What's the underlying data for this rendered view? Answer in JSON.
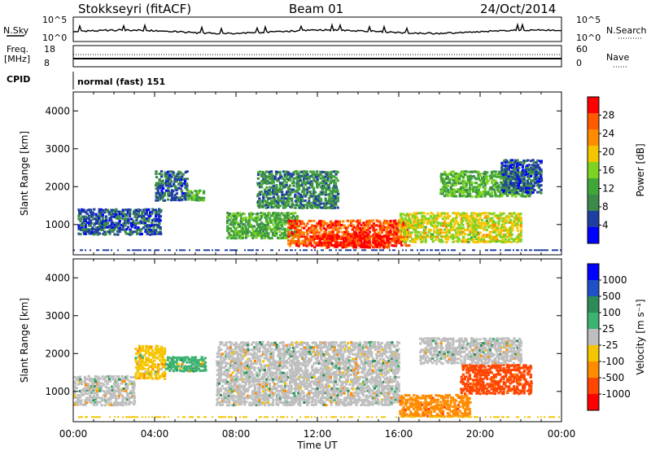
{
  "header": {
    "station": "Stokkseyri (fitACF)",
    "beam": "Beam 01",
    "date": "24/Oct/2014"
  },
  "top_panel": {
    "left_label": "N.Sky",
    "left_ticks": [
      "10^5",
      "10^0"
    ],
    "right_label": "N.Search",
    "right_ticks": [
      "10^5",
      "10^0"
    ]
  },
  "freq_panel": {
    "left_label_line1": "Freq.",
    "left_label_line2": "[MHz]",
    "left_ticks": [
      "18",
      "8"
    ],
    "right_label": "Nave",
    "right_ticks": [
      "60",
      "0"
    ],
    "cpid_label": "CPID",
    "cpid_value": "normal (fast) 151"
  },
  "colors": {
    "power": [
      "#0000ff",
      "#1f3fa0",
      "#3c8a4a",
      "#3fa637",
      "#7ed321",
      "#f5c500",
      "#ff8c00",
      "#ff5a00",
      "#ff0000"
    ],
    "velocity": [
      "#0000ff",
      "#1e50c8",
      "#2e8b57",
      "#3cb371",
      "#bebebe",
      "#f5c500",
      "#ff8c00",
      "#ff4500",
      "#ff0000"
    ]
  },
  "chart_data": [
    {
      "type": "heatmap",
      "name": "power",
      "ylabel": "Slant Range [km]",
      "ylim": [
        200,
        4500
      ],
      "yticks": [
        "1000",
        "2000",
        "3000",
        "4000"
      ],
      "colorbar_label": "Power [dB]",
      "colorbar_ticks": [
        "4",
        "8",
        "12",
        "16",
        "20",
        "24",
        "28"
      ],
      "colorbar_range": [
        0,
        32
      ],
      "x_hours": [
        0,
        24
      ],
      "features": [
        {
          "t": [
            0.2,
            4.3
          ],
          "r": [
            700,
            1400
          ],
          "v": 6
        },
        {
          "t": [
            4.0,
            5.6
          ],
          "r": [
            1600,
            2400
          ],
          "v": 7
        },
        {
          "t": [
            5.6,
            6.4
          ],
          "r": [
            1600,
            1900
          ],
          "v": 12
        },
        {
          "t": [
            7.5,
            11.0
          ],
          "r": [
            600,
            1300
          ],
          "v": 12
        },
        {
          "t": [
            9.0,
            13.0
          ],
          "r": [
            1400,
            2400
          ],
          "v": 9
        },
        {
          "t": [
            10.5,
            16.5
          ],
          "r": [
            400,
            1100
          ],
          "v": 27
        },
        {
          "t": [
            11.8,
            15.5
          ],
          "r": [
            350,
            700
          ],
          "v": 30
        },
        {
          "t": [
            16.0,
            22.0
          ],
          "r": [
            500,
            1300
          ],
          "v": 18
        },
        {
          "t": [
            18.0,
            22.5
          ],
          "r": [
            1700,
            2400
          ],
          "v": 13
        },
        {
          "t": [
            21.0,
            23.0
          ],
          "r": [
            1800,
            2700
          ],
          "v": 6
        }
      ]
    },
    {
      "type": "heatmap",
      "name": "velocity",
      "ylabel": "Slant Range [km]",
      "ylim": [
        200,
        4500
      ],
      "yticks": [
        "1000",
        "2000",
        "3000",
        "4000"
      ],
      "colorbar_label": "Velocity [m s^-1]",
      "colorbar_ticks": [
        "1000",
        "500",
        "100",
        "25",
        "-25",
        "-100",
        "-500",
        "-1000"
      ],
      "xlabel": "Time UT",
      "xticks": [
        "00:00",
        "04:00",
        "08:00",
        "12:00",
        "16:00",
        "20:00",
        "00:00"
      ],
      "x_hours": [
        0,
        24
      ],
      "features": [
        {
          "t": [
            0.0,
            3.0
          ],
          "r": [
            600,
            1400
          ],
          "v": 0
        },
        {
          "t": [
            3.0,
            4.5
          ],
          "r": [
            1300,
            2200
          ],
          "v": -80
        },
        {
          "t": [
            4.5,
            6.5
          ],
          "r": [
            1500,
            1900
          ],
          "v": 50
        },
        {
          "t": [
            7.0,
            16.0
          ],
          "r": [
            600,
            2300
          ],
          "v": 0
        },
        {
          "t": [
            16.0,
            19.5
          ],
          "r": [
            300,
            900
          ],
          "v": -400
        },
        {
          "t": [
            19.0,
            22.5
          ],
          "r": [
            900,
            1700
          ],
          "v": -600
        },
        {
          "t": [
            17.0,
            22.0
          ],
          "r": [
            1700,
            2400
          ],
          "v": 0
        }
      ]
    }
  ]
}
